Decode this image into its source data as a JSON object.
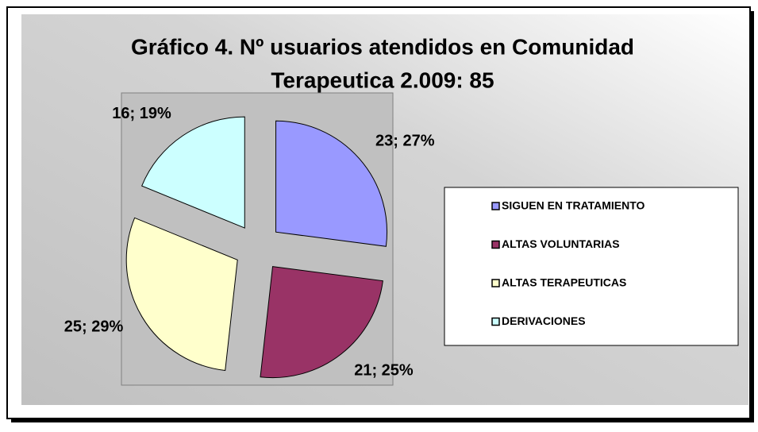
{
  "chart_data": {
    "type": "pie",
    "title": [
      "Gráfico 4. Nº usuarios atendidos en Comunidad",
      "Terapeutica 2.009: 85"
    ],
    "categories": [
      "SIGUEN EN TRATAMIENTO",
      "ALTAS VOLUNTARIAS",
      "ALTAS TERAPEUTICAS",
      "DERIVACIONES"
    ],
    "values": [
      23,
      21,
      25,
      16
    ],
    "value_labels": [
      "23; 27%",
      "21; 25%",
      "25; 29%",
      "16; 19%"
    ],
    "colors": [
      "#9999ff",
      "#993366",
      "#ffffcc",
      "#ccffff"
    ],
    "legend": "right"
  }
}
